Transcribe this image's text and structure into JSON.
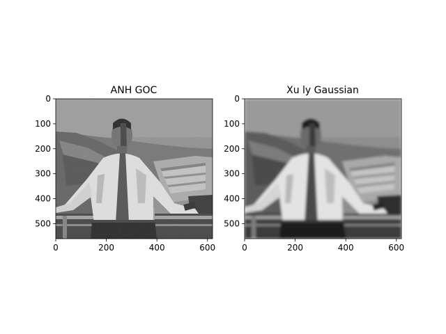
{
  "chart_data": [
    {
      "type": "image",
      "title": "ANH GOC",
      "image_description": "grayscale photo of a man in a white shirt standing at a railing with a dam and hills behind; visible noise",
      "xlim": [
        0,
        620
      ],
      "ylim": [
        560,
        0
      ],
      "xticks": [
        0,
        200,
        400,
        600
      ],
      "yticks": [
        0,
        100,
        200,
        300,
        400,
        500
      ],
      "blur": 0
    },
    {
      "type": "image",
      "title": "Xu ly Gaussian",
      "image_description": "same photo after Gaussian blur (smoothed, noise reduced)",
      "xlim": [
        0,
        620
      ],
      "ylim": [
        560,
        0
      ],
      "xticks": [
        0,
        200,
        400,
        600
      ],
      "yticks": [
        0,
        100,
        200,
        300,
        400,
        500
      ],
      "blur": 1
    }
  ]
}
